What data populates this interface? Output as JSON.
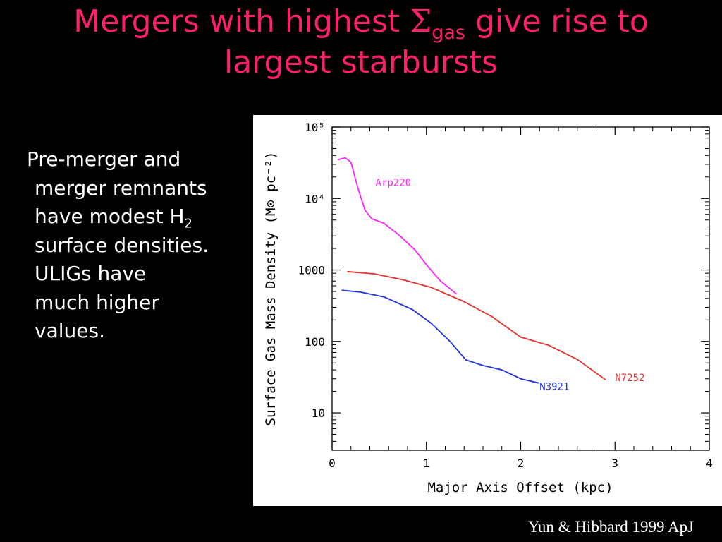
{
  "slide": {
    "title_before": "Mergers with highest ",
    "title_symbol": "Σ",
    "title_subscript": "gas",
    "title_after": " give rise to",
    "title_line2": "largest starbursts",
    "body": {
      "line1": "Pre-merger and",
      "line2": "merger remnants",
      "line3_before": "have modest H",
      "line3_subscript": "2",
      "line4": "surface densities.",
      "line5": "ULIGs have",
      "line6": "much higher",
      "line7": "values."
    },
    "citation": "Yun & Hibbard 1999 ApJ"
  },
  "colors": {
    "background": "#000000",
    "title": "#ff1f6e",
    "body_text": "#ffffff",
    "Arp220": "#ff22ff",
    "N7252": "#e8302c",
    "N3921": "#2233e0"
  },
  "chart_data": {
    "type": "line",
    "xlabel": "Major Axis Offset (kpc)",
    "ylabel": "Surface Gas Mass Density (M⊙ pc⁻²)",
    "y_scale": "log",
    "xlim": [
      0,
      4
    ],
    "ylim": [
      3,
      100000
    ],
    "x_ticks": [
      {
        "value": 0,
        "label": "0"
      },
      {
        "value": 1,
        "label": "1"
      },
      {
        "value": 2,
        "label": "2"
      },
      {
        "value": 3,
        "label": "3"
      },
      {
        "value": 4,
        "label": "4"
      }
    ],
    "y_ticks": [
      {
        "value": 10,
        "label": "10"
      },
      {
        "value": 100,
        "label": "100"
      },
      {
        "value": 1000,
        "label": "1000"
      },
      {
        "value": 10000,
        "label": "10⁴"
      },
      {
        "value": 100000,
        "label": "10⁵"
      }
    ],
    "series": [
      {
        "name": "Arp220",
        "x": [
          0.06,
          0.14,
          0.2,
          0.27,
          0.32,
          0.35,
          0.42,
          0.55,
          0.72,
          0.88,
          1.02,
          1.15,
          1.32
        ],
        "y": [
          35000,
          37000,
          32000,
          14500,
          9000,
          6800,
          5200,
          4500,
          3000,
          1900,
          1100,
          700,
          460
        ]
      },
      {
        "name": "N7252",
        "x": [
          0.16,
          0.45,
          0.75,
          1.05,
          1.4,
          1.7,
          2.0,
          2.3,
          2.6,
          2.9
        ],
        "y": [
          950,
          880,
          730,
          570,
          360,
          220,
          115,
          88,
          56,
          29
        ]
      },
      {
        "name": "N3921",
        "x": [
          0.1,
          0.3,
          0.55,
          0.85,
          1.05,
          1.25,
          1.42,
          1.6,
          1.8,
          2.0,
          2.2
        ],
        "y": [
          520,
          490,
          420,
          280,
          180,
          100,
          55,
          46,
          40,
          30,
          26
        ]
      }
    ]
  }
}
